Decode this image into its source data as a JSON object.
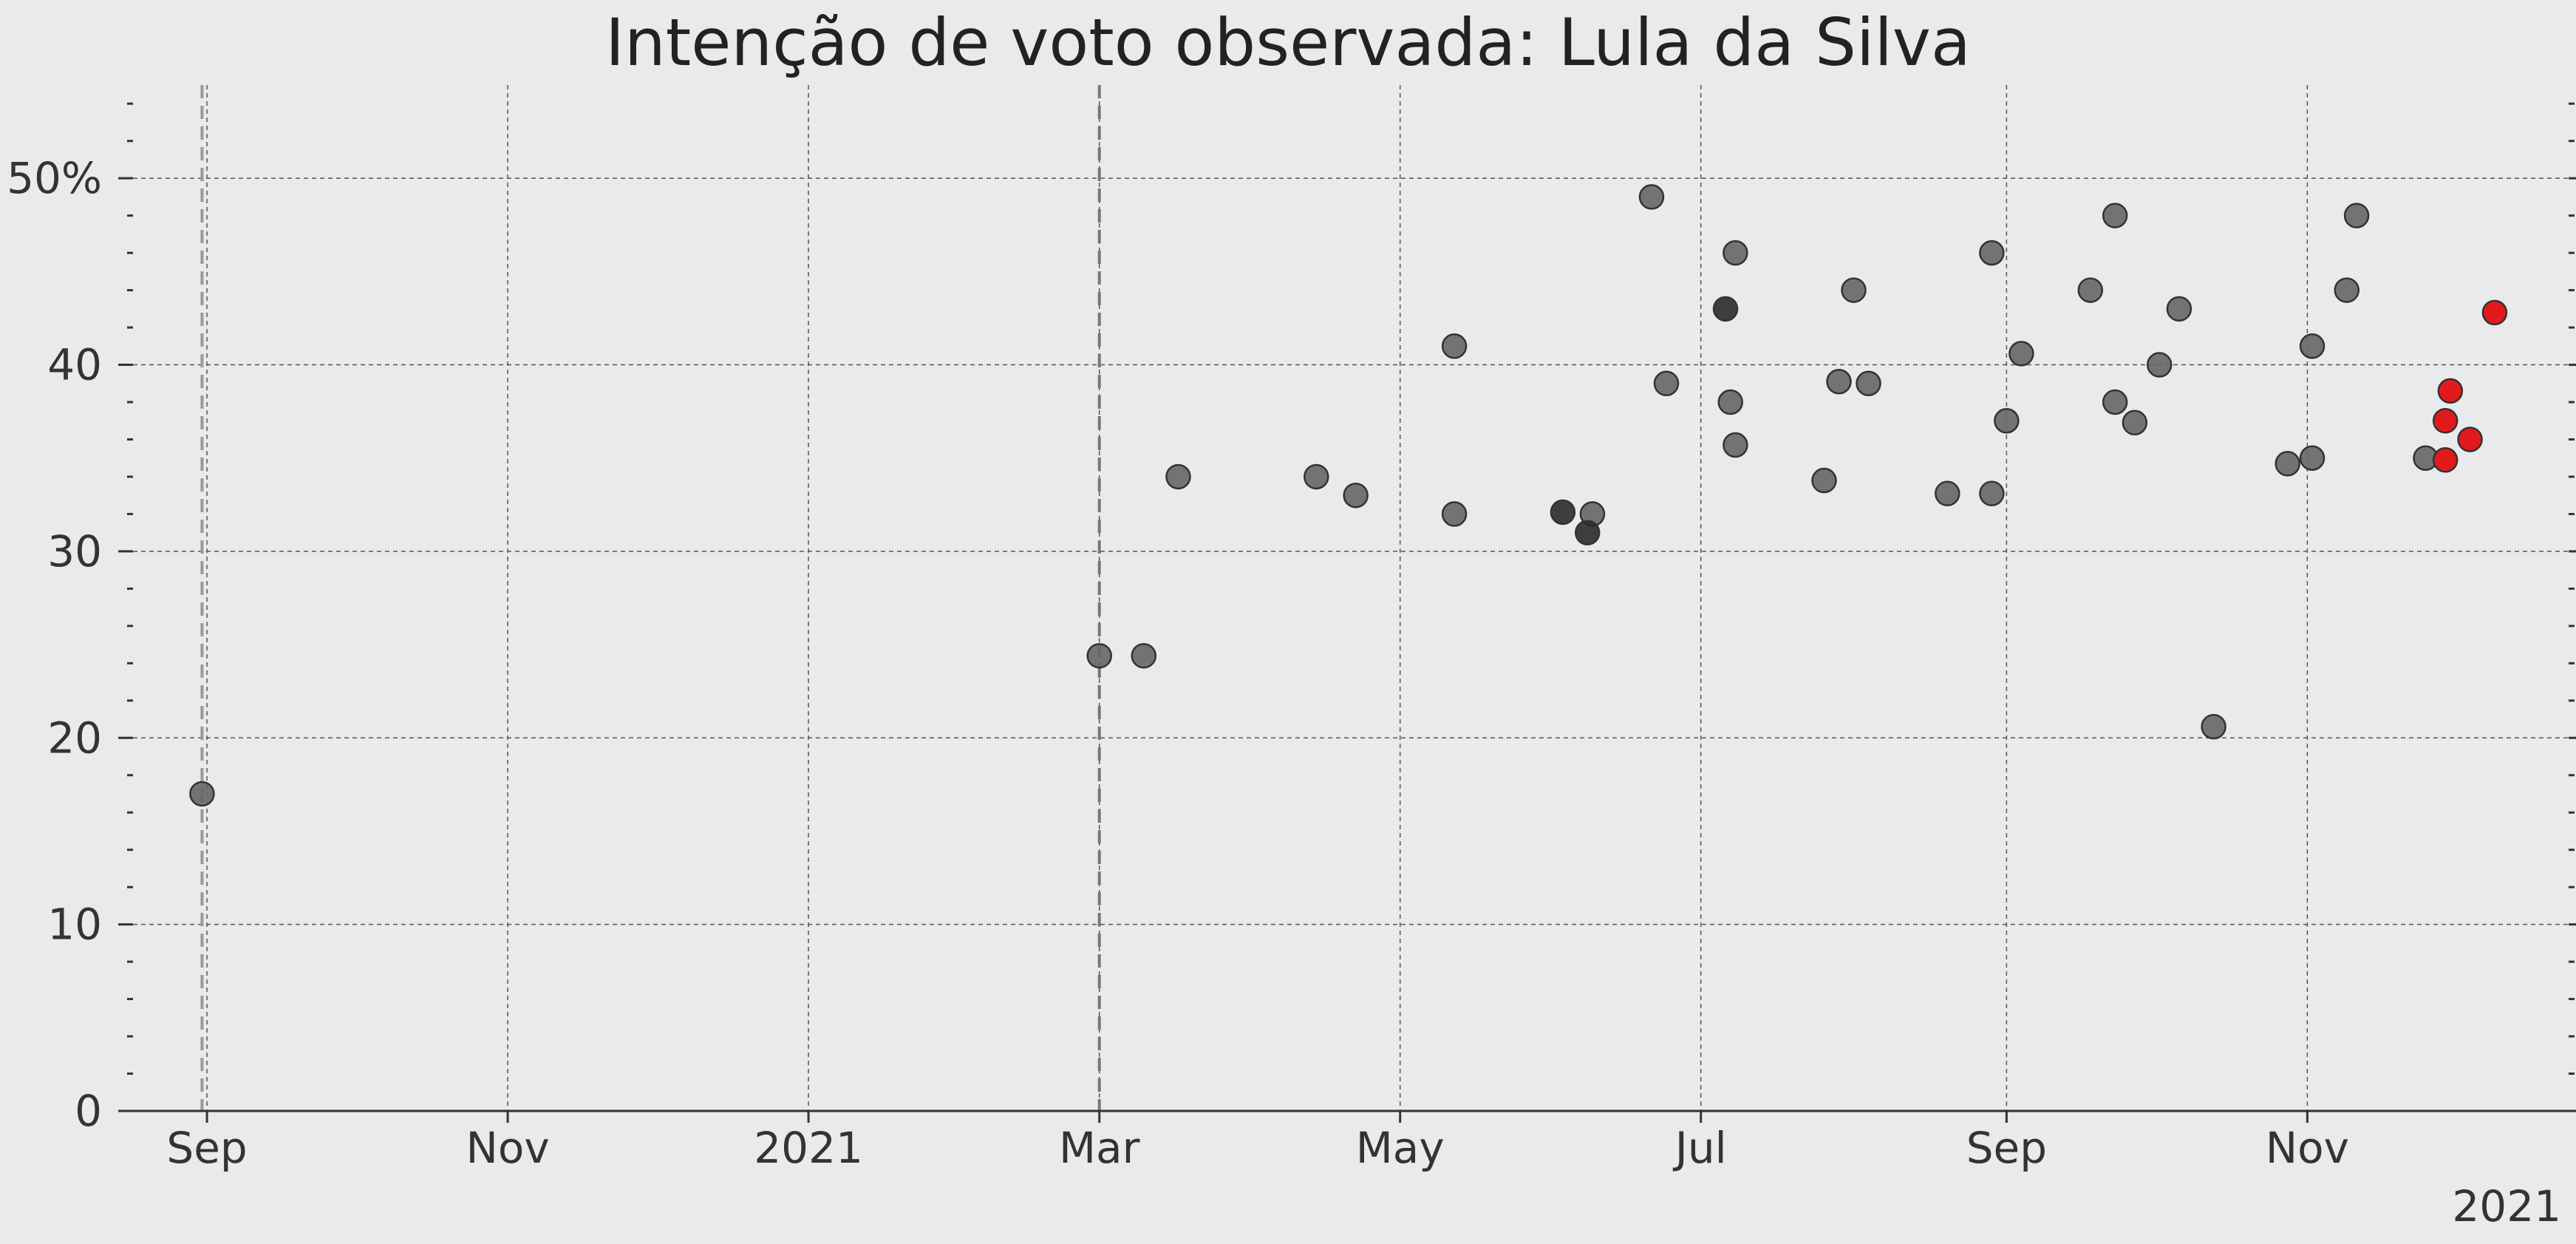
{
  "chart_data": {
    "type": "scatter",
    "title": "Intenção de voto observada: Lula da Silva",
    "xlabel": "",
    "ylabel": "",
    "x_type": "date",
    "xlim": [
      "2020-08-17",
      "2021-12-24"
    ],
    "ylim": [
      0,
      55
    ],
    "x_ticks": [
      {
        "date": "2020-09-01",
        "label": "Sep"
      },
      {
        "date": "2020-11-01",
        "label": "Nov"
      },
      {
        "date": "2021-01-01",
        "label": "2021"
      },
      {
        "date": "2021-03-01",
        "label": "Mar"
      },
      {
        "date": "2021-05-01",
        "label": "May"
      },
      {
        "date": "2021-07-01",
        "label": "Jul"
      },
      {
        "date": "2021-09-01",
        "label": "Sep"
      },
      {
        "date": "2021-11-01",
        "label": "Nov"
      }
    ],
    "x_offset_label": "2021",
    "y_ticks": [
      {
        "value": 0,
        "label": "0"
      },
      {
        "value": 10,
        "label": "10"
      },
      {
        "value": 20,
        "label": "20"
      },
      {
        "value": 30,
        "label": "30"
      },
      {
        "value": 40,
        "label": "40"
      },
      {
        "value": 50,
        "label": "50%"
      }
    ],
    "y_minor_step": 2,
    "grid": true,
    "vertical_lines": [
      {
        "date": "2020-08-31",
        "color": "#999999"
      },
      {
        "date": "2021-03-01",
        "color": "#777777"
      }
    ],
    "colors": {
      "default": "#666666",
      "highlight": "#e31a1c",
      "dark": "#2b2b2b",
      "background": "#e9eaec"
    },
    "series": [
      {
        "color": "#666666",
        "points": [
          {
            "x": "2020-08-31",
            "y": 17
          },
          {
            "x": "2021-03-01",
            "y": 24.4
          },
          {
            "x": "2021-03-10",
            "y": 24.4
          },
          {
            "x": "2021-03-17",
            "y": 34
          },
          {
            "x": "2021-04-14",
            "y": 34
          },
          {
            "x": "2021-04-22",
            "y": 33
          },
          {
            "x": "2021-05-12",
            "y": 41
          },
          {
            "x": "2021-05-12",
            "y": 32
          },
          {
            "x": "2021-06-09",
            "y": 32
          },
          {
            "x": "2021-06-21",
            "y": 49
          },
          {
            "x": "2021-06-24",
            "y": 39
          },
          {
            "x": "2021-07-07",
            "y": 38
          },
          {
            "x": "2021-07-08",
            "y": 46
          },
          {
            "x": "2021-07-08",
            "y": 35.7
          },
          {
            "x": "2021-07-26",
            "y": 33.8
          },
          {
            "x": "2021-07-29",
            "y": 39.1
          },
          {
            "x": "2021-08-01",
            "y": 44
          },
          {
            "x": "2021-08-04",
            "y": 39
          },
          {
            "x": "2021-08-20",
            "y": 33.1
          },
          {
            "x": "2021-08-29",
            "y": 33.1
          },
          {
            "x": "2021-08-29",
            "y": 46
          },
          {
            "x": "2021-09-01",
            "y": 37
          },
          {
            "x": "2021-09-04",
            "y": 40.6
          },
          {
            "x": "2021-09-18",
            "y": 44
          },
          {
            "x": "2021-09-23",
            "y": 48
          },
          {
            "x": "2021-09-23",
            "y": 38
          },
          {
            "x": "2021-09-27",
            "y": 36.9
          },
          {
            "x": "2021-10-02",
            "y": 40
          },
          {
            "x": "2021-10-06",
            "y": 43
          },
          {
            "x": "2021-10-13",
            "y": 20.6
          },
          {
            "x": "2021-10-28",
            "y": 34.7
          },
          {
            "x": "2021-11-02",
            "y": 35
          },
          {
            "x": "2021-11-02",
            "y": 41
          },
          {
            "x": "2021-11-09",
            "y": 44
          },
          {
            "x": "2021-11-11",
            "y": 48
          },
          {
            "x": "2021-11-25",
            "y": 35
          }
        ]
      },
      {
        "color": "#2b2b2b",
        "points": [
          {
            "x": "2021-06-03",
            "y": 32.1
          },
          {
            "x": "2021-06-08",
            "y": 31
          },
          {
            "x": "2021-07-06",
            "y": 43
          }
        ]
      },
      {
        "color": "#e31a1c",
        "points": [
          {
            "x": "2021-11-29",
            "y": 37
          },
          {
            "x": "2021-11-30",
            "y": 38.6
          },
          {
            "x": "2021-11-29",
            "y": 34.9
          },
          {
            "x": "2021-12-04",
            "y": 36
          },
          {
            "x": "2021-12-09",
            "y": 42.8
          }
        ]
      }
    ]
  }
}
